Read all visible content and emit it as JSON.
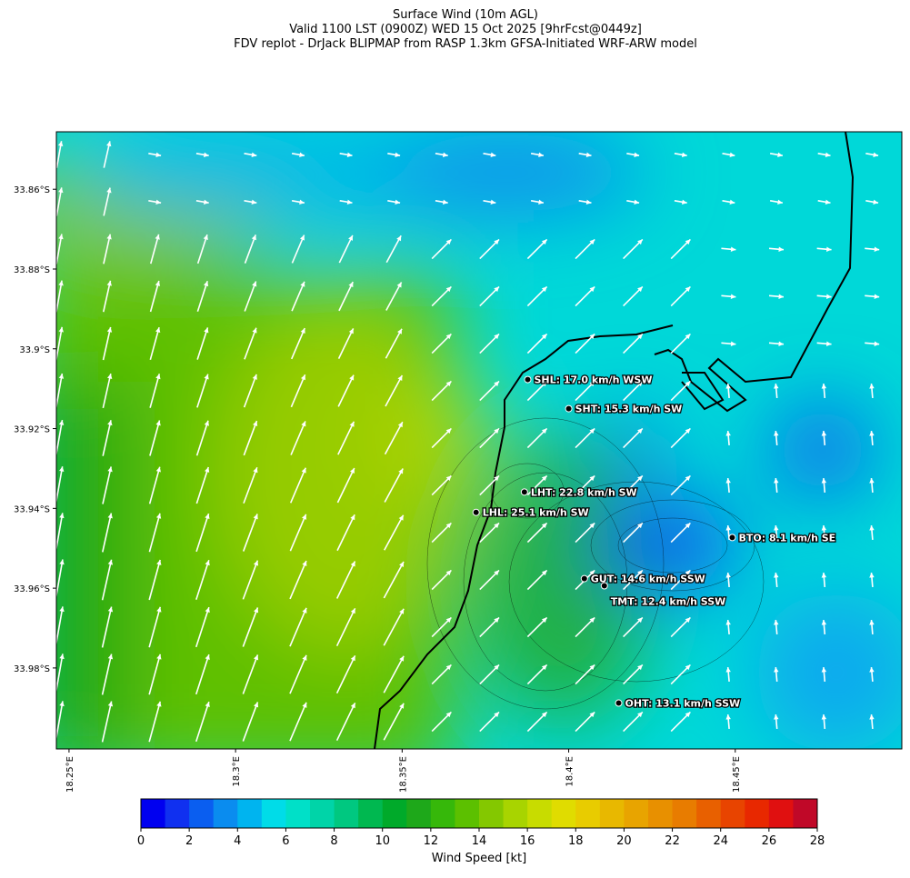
{
  "title": [
    "Surface Wind (10m AGL)",
    "Valid 1100 LST (0900Z) WED 15 Oct 2025 [9hrFcst@0449z]",
    "FDV replot - DrJack BLIPMAP from RASP 1.3km GFSA-Initiated WRF-ARW model"
  ],
  "map": {
    "xlim": [
      18.2462,
      18.5
    ],
    "ylim": [
      -34.0003,
      -33.8456
    ],
    "xticks": [
      {
        "value": 18.25,
        "label": "18.25°E"
      },
      {
        "value": 18.3,
        "label": "18.3°E"
      },
      {
        "value": 18.35,
        "label": "18.35°E"
      },
      {
        "value": 18.4,
        "label": "18.4°E"
      },
      {
        "value": 18.45,
        "label": "18.45°E"
      }
    ],
    "yticks": [
      {
        "value": -33.86,
        "label": "33.86°S"
      },
      {
        "value": -33.88,
        "label": "33.88°S"
      },
      {
        "value": -33.9,
        "label": "33.9°S"
      },
      {
        "value": -33.92,
        "label": "33.92°S"
      },
      {
        "value": -33.94,
        "label": "33.94°S"
      },
      {
        "value": -33.96,
        "label": "33.96°S"
      },
      {
        "value": -33.98,
        "label": "33.98°S"
      }
    ],
    "stations": [
      {
        "label": "SHL: 17.0 km/h WSW",
        "lon": 18.3877,
        "lat": -33.9077
      },
      {
        "label": "SHT: 15.3 km/h SW",
        "lon": 18.4,
        "lat": -33.915
      },
      {
        "label": "LHT: 22.8 km/h SW",
        "lon": 18.3867,
        "lat": -33.9359
      },
      {
        "label": "LHL: 25.1 km/h SW",
        "lon": 18.3722,
        "lat": -33.941
      },
      {
        "label": "BTO: 8.1 km/h SE",
        "lon": 18.4491,
        "lat": -33.9473
      },
      {
        "label": "GUT: 14.6 km/h SSW",
        "lon": 18.4047,
        "lat": -33.9576
      },
      {
        "label": "TMT: 12.4 km/h SSW",
        "lon": 18.4107,
        "lat": -33.9594
      },
      {
        "label": "OHT: 13.1 km/h SSW",
        "lon": 18.415,
        "lat": -33.9888
      }
    ]
  },
  "colorbar": {
    "label": "Wind Speed [kt]",
    "lim": [
      0,
      28
    ],
    "ticks": [
      0,
      2,
      4,
      6,
      8,
      10,
      12,
      14,
      16,
      18,
      20,
      22,
      24,
      26,
      28
    ],
    "colors": [
      "#0000f0",
      "#1030f0",
      "#0a5ef0",
      "#0a8cef",
      "#00b4ef",
      "#00dce8",
      "#00e0c8",
      "#00d4a8",
      "#00c880",
      "#00b850",
      "#00aa2a",
      "#1ea81a",
      "#36b80a",
      "#5cc000",
      "#84c800",
      "#a8d400",
      "#c8dc00",
      "#e0dc00",
      "#e8cc00",
      "#e8b800",
      "#e8a400",
      "#e89000",
      "#e87c00",
      "#e86000",
      "#e84400",
      "#e82800",
      "#e01010",
      "#c00828"
    ]
  }
}
